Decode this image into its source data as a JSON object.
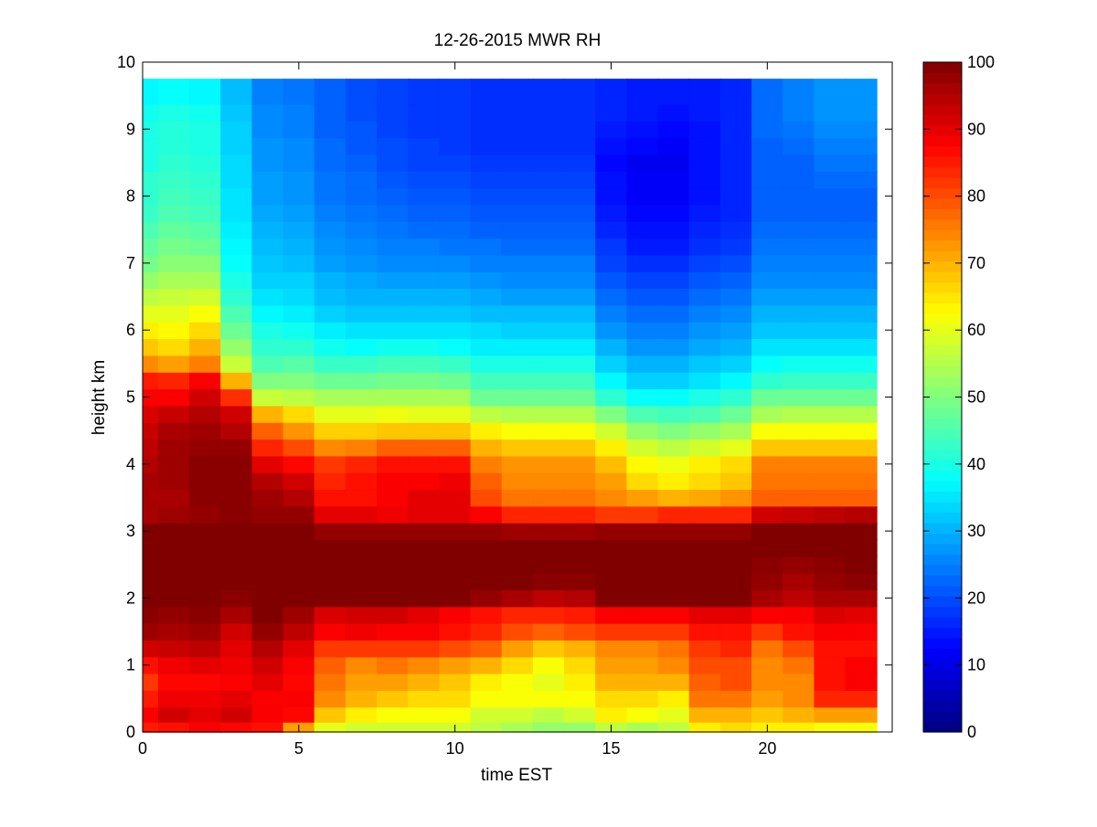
{
  "chart_data": {
    "type": "heatmap",
    "title": "12-26-2015 MWR RH",
    "xlabel": "time EST",
    "ylabel": "height km",
    "xlim": [
      0,
      24
    ],
    "ylim": [
      0,
      10
    ],
    "xticks": [
      0,
      5,
      10,
      15,
      20
    ],
    "yticks": [
      0,
      1,
      2,
      3,
      4,
      5,
      6,
      7,
      8,
      9,
      10
    ],
    "colorbar": {
      "range": [
        0,
        100
      ],
      "ticks": [
        0,
        10,
        20,
        30,
        40,
        50,
        60,
        70,
        80,
        90,
        100
      ],
      "colormap": "jet"
    },
    "x_centers": [
      0.25,
      1,
      2,
      3,
      4,
      5,
      6,
      7,
      8,
      9,
      10,
      11,
      12,
      13,
      14,
      15,
      16,
      17,
      18,
      19,
      20,
      21,
      22,
      23
    ],
    "x_edges": [
      0,
      0.5,
      1.5,
      2.5,
      3.5,
      4.5,
      5.5,
      6.5,
      7.5,
      8.5,
      9.5,
      10.5,
      11.5,
      12.5,
      13.5,
      14.5,
      15.5,
      16.5,
      17.5,
      18.5,
      19.5,
      20.5,
      21.5,
      22.5,
      23.5
    ],
    "height_levels_km": [
      0.05,
      0.25,
      0.5,
      0.75,
      1.0,
      1.25,
      1.5,
      1.75,
      2.0,
      2.25,
      2.5,
      2.75,
      3.0,
      3.25,
      3.5,
      3.75,
      4.0,
      4.25,
      4.5,
      4.75,
      5.0,
      5.25,
      5.5,
      5.75,
      6.0,
      6.25,
      6.5,
      6.75,
      7.0,
      7.25,
      7.5,
      7.75,
      8.0,
      8.25,
      8.5,
      8.75,
      9.0,
      9.25,
      9.5
    ],
    "y_edges": [
      0,
      0.15,
      0.375,
      0.625,
      0.875,
      1.125,
      1.375,
      1.625,
      1.875,
      2.125,
      2.375,
      2.625,
      2.875,
      3.125,
      3.375,
      3.625,
      3.875,
      4.125,
      4.375,
      4.625,
      4.875,
      5.125,
      5.375,
      5.625,
      5.875,
      6.125,
      6.375,
      6.625,
      6.875,
      7.125,
      7.375,
      7.625,
      7.875,
      8.125,
      8.375,
      8.625,
      8.875,
      9.125,
      9.375,
      9.75
    ],
    "rh_profile_by_hour": [
      [
        85,
        88,
        85,
        82,
        86,
        92,
        97,
        99,
        100,
        100,
        100,
        100,
        100,
        96,
        96,
        96,
        95,
        94,
        93,
        91,
        88,
        85,
        74,
        68,
        64,
        60,
        56,
        52,
        49,
        47,
        45,
        43,
        42,
        42,
        40,
        40,
        40,
        39,
        37
      ],
      [
        86,
        92,
        89,
        87,
        89,
        93,
        96,
        98,
        100,
        100,
        100,
        100,
        100,
        97,
        96,
        97,
        97,
        97,
        96,
        93,
        88,
        84,
        72,
        66,
        63,
        60,
        57,
        54,
        51,
        49,
        47,
        45,
        44,
        43,
        42,
        41,
        41,
        40,
        38
      ],
      [
        88,
        90,
        89,
        87,
        90,
        94,
        97,
        99,
        100,
        100,
        100,
        100,
        100,
        98,
        99,
        99,
        99,
        98,
        97,
        95,
        92,
        88,
        75,
        70,
        66,
        62,
        58,
        54,
        51,
        48,
        46,
        44,
        43,
        42,
        41,
        40,
        40,
        39,
        37
      ],
      [
        87,
        92,
        90,
        88,
        89,
        90,
        92,
        96,
        99,
        100,
        100,
        100,
        100,
        99,
        99,
        99,
        99,
        98,
        95,
        92,
        83,
        70,
        57,
        52,
        48,
        45,
        42,
        40,
        38,
        37,
        36,
        35,
        35,
        34,
        34,
        33,
        33,
        32,
        31
      ],
      [
        86,
        88,
        88,
        90,
        92,
        95,
        98,
        100,
        100,
        100,
        100,
        100,
        100,
        98,
        97,
        95,
        90,
        84,
        78,
        70,
        57,
        50,
        45,
        42,
        40,
        37,
        35,
        33,
        32,
        31,
        30,
        29,
        28,
        28,
        27,
        27,
        26,
        26,
        25
      ],
      [
        72,
        87,
        88,
        87,
        88,
        90,
        94,
        97,
        100,
        100,
        100,
        100,
        100,
        98,
        95,
        92,
        87,
        80,
        73,
        66,
        56,
        50,
        46,
        42,
        39,
        36,
        34,
        33,
        31,
        30,
        29,
        28,
        27,
        27,
        26,
        26,
        25,
        25,
        24
      ],
      [
        60,
        68,
        74,
        76,
        78,
        82,
        88,
        91,
        100,
        100,
        100,
        100,
        98,
        90,
        86,
        84,
        82,
        74,
        67,
        60,
        54,
        48,
        43,
        39,
        36,
        33,
        31,
        30,
        28,
        27,
        26,
        25,
        24,
        24,
        23,
        23,
        22,
        22,
        22
      ],
      [
        58,
        64,
        70,
        72,
        74,
        82,
        89,
        92,
        100,
        100,
        100,
        100,
        98,
        90,
        86,
        86,
        84,
        75,
        67,
        60,
        54,
        48,
        43,
        38,
        35,
        32,
        30,
        29,
        27,
        26,
        25,
        24,
        23,
        23,
        22,
        21,
        21,
        20,
        20
      ],
      [
        58,
        62,
        68,
        72,
        76,
        82,
        88,
        92,
        100,
        100,
        100,
        100,
        98,
        89,
        88,
        88,
        86,
        78,
        68,
        61,
        54,
        49,
        44,
        39,
        35,
        32,
        30,
        28,
        26,
        25,
        24,
        23,
        22,
        21,
        20,
        20,
        19,
        19,
        19
      ],
      [
        58,
        62,
        66,
        70,
        74,
        82,
        88,
        90,
        100,
        100,
        100,
        100,
        98,
        90,
        90,
        88,
        86,
        78,
        68,
        60,
        54,
        49,
        44,
        39,
        35,
        32,
        30,
        28,
        26,
        25,
        23,
        22,
        21,
        20,
        19,
        19,
        18,
        18,
        18
      ],
      [
        58,
        62,
        66,
        68,
        72,
        80,
        86,
        88,
        100,
        100,
        100,
        100,
        98,
        90,
        90,
        89,
        86,
        78,
        68,
        60,
        54,
        48,
        43,
        38,
        35,
        32,
        30,
        28,
        26,
        24,
        23,
        22,
        21,
        20,
        19,
        18,
        18,
        18,
        18
      ],
      [
        56,
        58,
        62,
        64,
        70,
        78,
        84,
        86,
        98,
        100,
        100,
        100,
        98,
        88,
        80,
        78,
        75,
        70,
        64,
        56,
        48,
        44,
        40,
        36,
        34,
        31,
        29,
        27,
        25,
        24,
        22,
        21,
        20,
        19,
        18,
        17,
        17,
        17,
        17
      ],
      [
        54,
        58,
        62,
        62,
        66,
        72,
        80,
        84,
        96,
        100,
        100,
        100,
        97,
        84,
        76,
        74,
        73,
        68,
        62,
        55,
        48,
        44,
        40,
        36,
        33,
        31,
        28,
        26,
        25,
        23,
        22,
        21,
        20,
        19,
        18,
        17,
        17,
        17,
        17
      ],
      [
        52,
        56,
        62,
        60,
        62,
        68,
        78,
        84,
        94,
        99,
        100,
        100,
        97,
        84,
        76,
        74,
        73,
        68,
        62,
        55,
        48,
        44,
        40,
        36,
        33,
        31,
        28,
        26,
        25,
        23,
        22,
        21,
        20,
        19,
        18,
        17,
        17,
        17,
        17
      ],
      [
        52,
        58,
        62,
        64,
        66,
        70,
        80,
        85,
        95,
        99,
        100,
        100,
        97,
        84,
        76,
        74,
        73,
        68,
        62,
        55,
        48,
        44,
        40,
        36,
        33,
        31,
        28,
        26,
        25,
        23,
        22,
        21,
        20,
        19,
        18,
        17,
        17,
        17,
        17
      ],
      [
        56,
        64,
        66,
        70,
        72,
        74,
        82,
        88,
        100,
        100,
        100,
        100,
        98,
        82,
        74,
        72,
        69,
        64,
        58,
        50,
        42,
        37,
        33,
        30,
        27,
        25,
        23,
        21,
        19,
        18,
        16,
        15,
        14,
        14,
        13,
        14,
        15,
        16,
        16
      ],
      [
        54,
        62,
        66,
        70,
        72,
        74,
        82,
        88,
        100,
        100,
        100,
        100,
        98,
        82,
        72,
        66,
        63,
        58,
        52,
        45,
        38,
        33,
        30,
        27,
        25,
        23,
        21,
        19,
        17,
        15,
        14,
        13,
        12,
        12,
        11,
        13,
        14,
        15,
        15
      ],
      [
        56,
        60,
        64,
        70,
        74,
        76,
        82,
        88,
        100,
        100,
        100,
        100,
        98,
        84,
        70,
        64,
        61,
        56,
        50,
        44,
        38,
        33,
        30,
        27,
        25,
        23,
        21,
        19,
        17,
        15,
        14,
        13,
        12,
        12,
        11,
        12,
        13,
        14,
        15
      ],
      [
        64,
        70,
        76,
        78,
        80,
        82,
        86,
        90,
        100,
        100,
        100,
        100,
        98,
        84,
        71,
        66,
        64,
        58,
        52,
        45,
        40,
        35,
        32,
        29,
        27,
        25,
        23,
        21,
        19,
        17,
        16,
        15,
        14,
        14,
        14,
        14,
        14,
        15,
        15
      ],
      [
        66,
        70,
        76,
        80,
        80,
        84,
        86,
        90,
        100,
        100,
        100,
        100,
        98,
        84,
        73,
        68,
        66,
        60,
        54,
        48,
        42,
        37,
        33,
        30,
        28,
        26,
        24,
        22,
        20,
        18,
        17,
        16,
        16,
        16,
        16,
        16,
        16,
        16,
        16
      ],
      [
        64,
        68,
        72,
        74,
        74,
        76,
        82,
        88,
        96,
        98,
        99,
        100,
        100,
        92,
        78,
        76,
        75,
        68,
        62,
        54,
        48,
        42,
        38,
        35,
        32,
        30,
        28,
        26,
        25,
        24,
        23,
        22,
        22,
        22,
        22,
        22,
        23,
        23,
        23
      ],
      [
        64,
        70,
        74,
        74,
        76,
        80,
        86,
        88,
        94,
        96,
        98,
        100,
        100,
        93,
        78,
        76,
        75,
        68,
        62,
        55,
        48,
        43,
        39,
        35,
        32,
        30,
        28,
        26,
        25,
        24,
        23,
        22,
        22,
        22,
        22,
        23,
        24,
        25,
        25
      ],
      [
        62,
        72,
        84,
        86,
        86,
        86,
        88,
        91,
        96,
        98,
        99,
        100,
        100,
        94,
        78,
        76,
        75,
        68,
        62,
        55,
        48,
        43,
        39,
        35,
        32,
        30,
        28,
        26,
        25,
        24,
        23,
        22,
        22,
        23,
        24,
        25,
        26,
        27,
        27
      ],
      [
        62,
        72,
        84,
        88,
        88,
        86,
        88,
        90,
        96,
        99,
        100,
        100,
        100,
        95,
        78,
        76,
        75,
        68,
        62,
        55,
        48,
        43,
        39,
        35,
        32,
        30,
        28,
        26,
        25,
        24,
        23,
        22,
        22,
        23,
        24,
        25,
        26,
        27,
        27
      ]
    ]
  }
}
